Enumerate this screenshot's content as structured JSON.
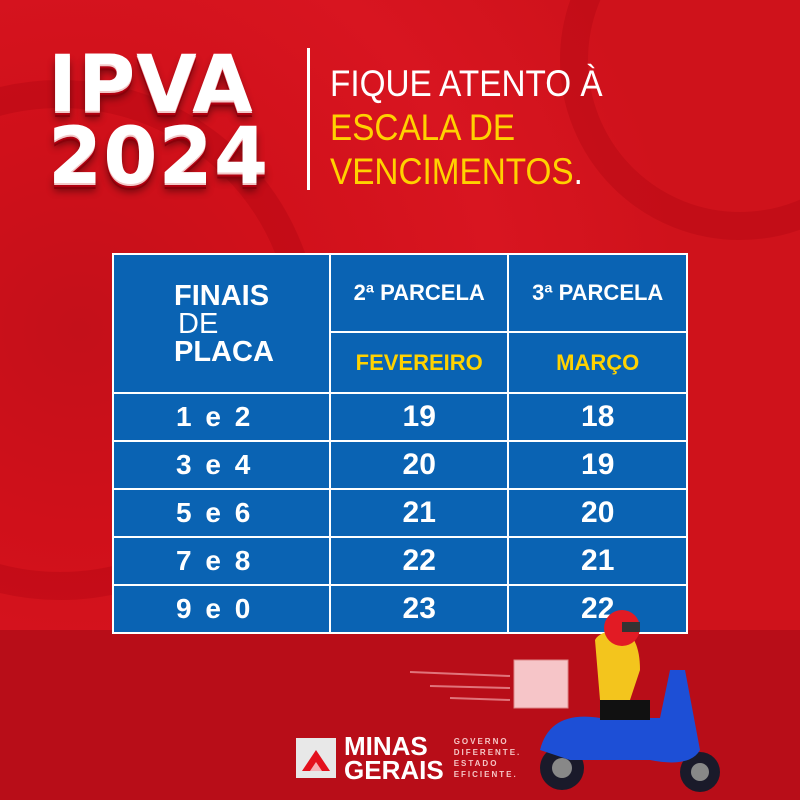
{
  "header": {
    "title_line1": "IPVA",
    "title_line2": "2024",
    "subtitle_line1": "FIQUE ATENTO À",
    "subtitle_line2": "ESCALA DE",
    "subtitle_line3": "VENCIMENTOS",
    "subtitle_period": "."
  },
  "table": {
    "col1_header": {
      "line1": "FINAIS",
      "line2": "DE",
      "line3": "PLACA"
    },
    "col2_header": "2ª PARCELA",
    "col3_header": "3ª PARCELA",
    "col2_month": "FEVEREIRO",
    "col3_month": "MARÇO",
    "rows": [
      {
        "finais": "1 e 2",
        "p2": "19",
        "p3": "18"
      },
      {
        "finais": "3 e 4",
        "p2": "20",
        "p3": "19"
      },
      {
        "finais": "5 e 6",
        "p2": "21",
        "p3": "20"
      },
      {
        "finais": "7 e 8",
        "p2": "22",
        "p3": "21"
      },
      {
        "finais": "9 e 0",
        "p2": "23",
        "p3": "22"
      }
    ]
  },
  "footer": {
    "logo_line1": "MINAS",
    "logo_line2": "GERAIS",
    "tagline": [
      "GOVERNO",
      "DIFERENTE.",
      "ESTADO",
      "EFICIENTE."
    ]
  },
  "colors": {
    "background": "#d0101a",
    "table": "#0a63b3",
    "accent": "#ffd200",
    "text": "#ffffff"
  },
  "icons": [
    "delivery-scooter-illustration",
    "minas-gerais-logo-icon"
  ]
}
